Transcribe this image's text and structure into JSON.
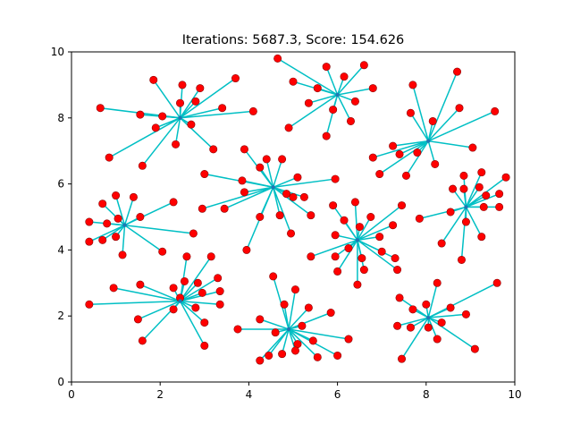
{
  "chart_data": {
    "type": "scatter",
    "title": "Iterations: 5687.3, Score: 154.626",
    "xlabel": "",
    "ylabel": "",
    "xlim": [
      0,
      10
    ],
    "ylim": [
      0,
      10
    ],
    "xticks": [
      "0",
      "2",
      "4",
      "6",
      "8",
      "10"
    ],
    "yticks": [
      "0",
      "2",
      "4",
      "6",
      "8",
      "10"
    ],
    "grid": false,
    "colors": {
      "points": "#ff0000",
      "point_edge": "#8b0000",
      "centers": "#1f77b4",
      "edges": "#00bfc4"
    },
    "clusters": [
      {
        "center": [
          2.45,
          8.0
        ],
        "points": [
          [
            1.85,
            9.15
          ],
          [
            2.5,
            9.0
          ],
          [
            2.9,
            8.9
          ],
          [
            3.7,
            9.2
          ],
          [
            0.65,
            8.3
          ],
          [
            1.55,
            8.1
          ],
          [
            2.05,
            8.05
          ],
          [
            2.45,
            8.45
          ],
          [
            2.8,
            8.5
          ],
          [
            3.4,
            8.3
          ],
          [
            4.1,
            8.2
          ],
          [
            1.9,
            7.7
          ],
          [
            2.7,
            7.8
          ],
          [
            0.85,
            6.8
          ],
          [
            1.6,
            6.55
          ],
          [
            2.35,
            7.2
          ],
          [
            3.2,
            7.05
          ]
        ]
      },
      {
        "center": [
          6.0,
          8.7
        ],
        "points": [
          [
            4.65,
            9.8
          ],
          [
            5.75,
            9.55
          ],
          [
            6.15,
            9.25
          ],
          [
            6.6,
            9.6
          ],
          [
            5.0,
            9.1
          ],
          [
            5.55,
            8.9
          ],
          [
            6.8,
            8.9
          ],
          [
            5.35,
            8.45
          ],
          [
            5.9,
            8.25
          ],
          [
            6.4,
            8.5
          ],
          [
            4.9,
            7.7
          ],
          [
            5.75,
            7.45
          ],
          [
            6.3,
            7.9
          ]
        ]
      },
      {
        "center": [
          8.05,
          7.3
        ],
        "points": [
          [
            7.7,
            9.0
          ],
          [
            8.7,
            9.4
          ],
          [
            7.65,
            8.15
          ],
          [
            8.15,
            7.9
          ],
          [
            8.75,
            8.3
          ],
          [
            9.55,
            8.2
          ],
          [
            7.25,
            7.15
          ],
          [
            7.4,
            6.9
          ],
          [
            7.8,
            6.95
          ],
          [
            9.05,
            7.1
          ],
          [
            6.8,
            6.8
          ],
          [
            8.2,
            6.6
          ],
          [
            6.95,
            6.3
          ],
          [
            7.55,
            6.25
          ]
        ]
      },
      {
        "center": [
          4.55,
          5.9
        ],
        "points": [
          [
            3.9,
            7.05
          ],
          [
            4.4,
            6.75
          ],
          [
            4.75,
            6.75
          ],
          [
            4.25,
            6.5
          ],
          [
            3.0,
            6.3
          ],
          [
            3.85,
            6.1
          ],
          [
            5.1,
            6.2
          ],
          [
            5.95,
            6.15
          ],
          [
            3.9,
            5.75
          ],
          [
            4.85,
            5.7
          ],
          [
            5.0,
            5.6
          ],
          [
            5.25,
            5.6
          ],
          [
            2.95,
            5.25
          ],
          [
            3.45,
            5.25
          ],
          [
            4.25,
            5.0
          ],
          [
            4.7,
            5.05
          ],
          [
            5.4,
            5.05
          ],
          [
            4.95,
            4.5
          ],
          [
            3.95,
            4.0
          ]
        ]
      },
      {
        "center": [
          1.2,
          4.75
        ],
        "points": [
          [
            0.7,
            5.4
          ],
          [
            1.0,
            5.65
          ],
          [
            1.4,
            5.6
          ],
          [
            2.3,
            5.45
          ],
          [
            0.4,
            4.85
          ],
          [
            0.8,
            4.8
          ],
          [
            1.05,
            4.95
          ],
          [
            1.55,
            5.0
          ],
          [
            0.4,
            4.25
          ],
          [
            0.7,
            4.3
          ],
          [
            1.0,
            4.4
          ],
          [
            2.75,
            4.5
          ],
          [
            1.15,
            3.85
          ],
          [
            2.05,
            3.95
          ]
        ]
      },
      {
        "center": [
          8.9,
          5.3
        ],
        "points": [
          [
            8.85,
            6.25
          ],
          [
            9.25,
            6.35
          ],
          [
            9.8,
            6.2
          ],
          [
            8.6,
            5.85
          ],
          [
            8.85,
            5.85
          ],
          [
            9.2,
            5.9
          ],
          [
            9.35,
            5.65
          ],
          [
            9.65,
            5.7
          ],
          [
            8.55,
            5.15
          ],
          [
            9.3,
            5.3
          ],
          [
            9.65,
            5.3
          ],
          [
            7.85,
            4.95
          ],
          [
            8.9,
            4.85
          ],
          [
            9.25,
            4.4
          ],
          [
            8.35,
            4.2
          ],
          [
            8.8,
            3.7
          ]
        ]
      },
      {
        "center": [
          6.45,
          4.3
        ],
        "points": [
          [
            5.9,
            5.35
          ],
          [
            6.4,
            5.45
          ],
          [
            6.75,
            5.0
          ],
          [
            7.45,
            5.35
          ],
          [
            6.15,
            4.9
          ],
          [
            6.5,
            4.7
          ],
          [
            7.25,
            4.75
          ],
          [
            5.95,
            4.45
          ],
          [
            6.95,
            4.4
          ],
          [
            6.25,
            4.05
          ],
          [
            5.4,
            3.8
          ],
          [
            5.95,
            3.8
          ],
          [
            6.55,
            3.75
          ],
          [
            6.6,
            3.4
          ],
          [
            6.0,
            3.35
          ],
          [
            7.0,
            3.95
          ],
          [
            7.3,
            3.75
          ],
          [
            7.35,
            3.4
          ],
          [
            6.45,
            2.95
          ]
        ]
      },
      {
        "center": [
          2.45,
          2.45
        ],
        "points": [
          [
            2.6,
            3.8
          ],
          [
            3.15,
            3.8
          ],
          [
            2.55,
            3.05
          ],
          [
            2.85,
            3.0
          ],
          [
            3.3,
            3.15
          ],
          [
            0.95,
            2.85
          ],
          [
            1.55,
            2.95
          ],
          [
            2.3,
            2.85
          ],
          [
            2.95,
            2.7
          ],
          [
            3.35,
            2.75
          ],
          [
            2.45,
            2.55
          ],
          [
            0.4,
            2.35
          ],
          [
            2.8,
            2.25
          ],
          [
            3.35,
            2.35
          ],
          [
            2.3,
            2.2
          ],
          [
            1.5,
            1.9
          ],
          [
            3.0,
            1.8
          ],
          [
            1.6,
            1.25
          ],
          [
            3.0,
            1.1
          ]
        ]
      },
      {
        "center": [
          4.9,
          1.6
        ],
        "points": [
          [
            4.55,
            3.2
          ],
          [
            5.05,
            2.8
          ],
          [
            4.8,
            2.35
          ],
          [
            5.35,
            2.25
          ],
          [
            4.25,
            1.9
          ],
          [
            5.2,
            1.7
          ],
          [
            5.85,
            2.1
          ],
          [
            3.75,
            1.6
          ],
          [
            4.6,
            1.5
          ],
          [
            5.1,
            1.15
          ],
          [
            5.45,
            1.25
          ],
          [
            6.25,
            1.3
          ],
          [
            4.45,
            0.8
          ],
          [
            4.75,
            0.85
          ],
          [
            5.05,
            0.95
          ],
          [
            5.55,
            0.75
          ],
          [
            6.0,
            0.8
          ],
          [
            4.25,
            0.65
          ]
        ]
      },
      {
        "center": [
          8.05,
          1.95
        ],
        "points": [
          [
            8.25,
            3.0
          ],
          [
            9.6,
            3.0
          ],
          [
            7.4,
            2.55
          ],
          [
            7.7,
            2.2
          ],
          [
            8.0,
            2.35
          ],
          [
            8.55,
            2.25
          ],
          [
            8.9,
            2.05
          ],
          [
            7.35,
            1.7
          ],
          [
            7.65,
            1.65
          ],
          [
            8.05,
            1.65
          ],
          [
            8.35,
            1.8
          ],
          [
            8.25,
            1.3
          ],
          [
            9.1,
            1.0
          ],
          [
            7.45,
            0.7
          ]
        ]
      }
    ]
  }
}
